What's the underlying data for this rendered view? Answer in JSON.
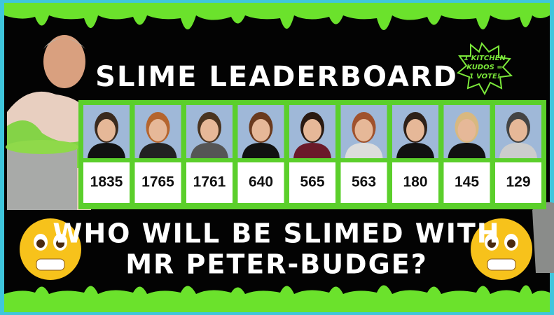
{
  "header": {
    "title": "SLIME LEADERBOARD",
    "badge": [
      "1 KITCHEN",
      "KUDOS =",
      "1 VOTE!"
    ]
  },
  "leaderboard": {
    "scores": [
      1835,
      1765,
      1761,
      640,
      565,
      563,
      180,
      145,
      129
    ]
  },
  "question": [
    "WHO WILL BE SLIMED WITH",
    "MR PETER-BUDGE?"
  ]
}
